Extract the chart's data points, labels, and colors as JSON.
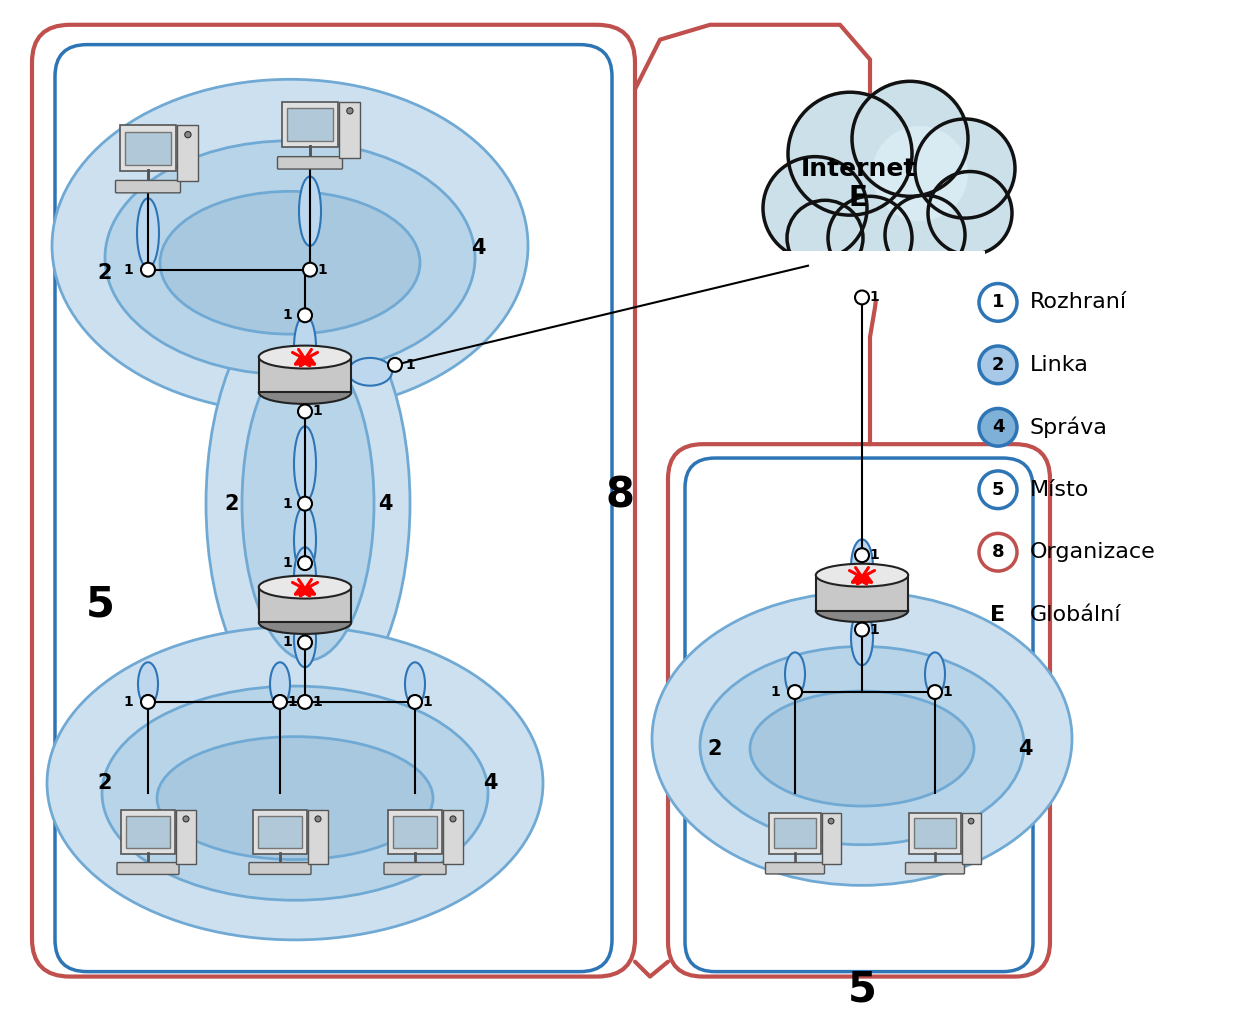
{
  "bg_color": "#ffffff",
  "blue_stroke": "#2e75b6",
  "blue_fill_light": "#bdd7ee",
  "blue_fill_lighter": "#deeaf1",
  "blue_med": "#70aad4",
  "red_stroke": "#c0504d",
  "legend_items": [
    {
      "symbol": "1",
      "color": "#2e75b6",
      "bg": "#ffffff",
      "label": "Rozhraní"
    },
    {
      "symbol": "2",
      "color": "#2e75b6",
      "bg": "#a8c8e8",
      "label": "Linka"
    },
    {
      "symbol": "4",
      "color": "#2e75b6",
      "bg": "#7fb0d8",
      "label": "Správa"
    },
    {
      "symbol": "5",
      "color": "#2e75b6",
      "bg": "#ffffff",
      "label": "Místo"
    },
    {
      "symbol": "8",
      "color": "#c0504d",
      "bg": "#ffffff",
      "label": "Organizace"
    },
    {
      "symbol": "E",
      "color": "#000000",
      "bg": null,
      "label": "Globální"
    }
  ],
  "cloud_fill": "#cce0ea",
  "cloud_edge": "#111111",
  "internet_label": "Internet",
  "internet_sublabel": "E"
}
